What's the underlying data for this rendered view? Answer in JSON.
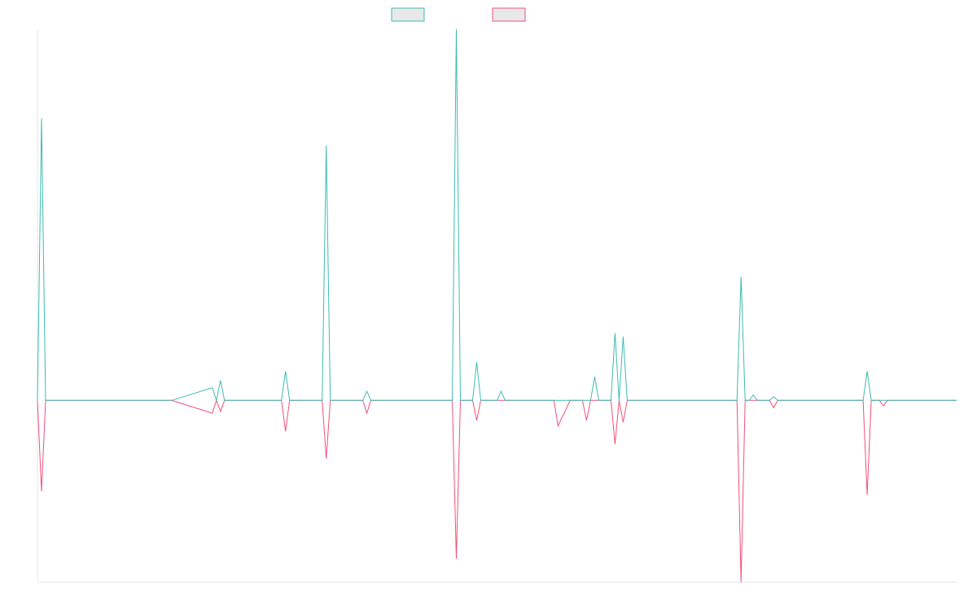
{
  "chart_data": {
    "type": "line",
    "title": "",
    "xlabel": "",
    "ylabel": "",
    "x": [
      0,
      1,
      2,
      3,
      4,
      5,
      6,
      7,
      8,
      9,
      10,
      11,
      12,
      13,
      14,
      15,
      16,
      17,
      18,
      19,
      20,
      21,
      22,
      23,
      24,
      25,
      26,
      27,
      28,
      29,
      30,
      31,
      32,
      33,
      34,
      35,
      36,
      37,
      38,
      39,
      40,
      41,
      42,
      43,
      44,
      45,
      46,
      47,
      48,
      49,
      50
    ],
    "xlim": [
      0,
      226
    ],
    "ylim": [
      -1.0,
      2.04
    ],
    "grid": false,
    "legend_position": "top-center",
    "series": [
      {
        "color": "#3dbcb0",
        "points": [
          [
            0,
            0
          ],
          [
            1,
            1.55
          ],
          [
            2,
            0
          ],
          [
            32,
            0
          ],
          [
            33,
            0
          ],
          [
            43,
            0.07
          ],
          [
            44,
            0
          ],
          [
            45,
            0.11
          ],
          [
            46,
            0
          ],
          [
            60,
            0
          ],
          [
            61,
            0.16
          ],
          [
            62,
            0
          ],
          [
            70,
            0
          ],
          [
            71,
            1.4
          ],
          [
            72,
            0
          ],
          [
            80,
            0
          ],
          [
            81,
            0.05
          ],
          [
            82,
            0
          ],
          [
            98,
            0
          ],
          [
            99,
            0
          ],
          [
            100,
            0
          ],
          [
            102,
            0
          ],
          [
            103,
            2.04
          ],
          [
            104,
            0
          ],
          [
            107,
            0
          ],
          [
            108,
            0.21
          ],
          [
            109,
            0
          ],
          [
            113,
            0
          ],
          [
            114,
            0.05
          ],
          [
            115,
            0
          ],
          [
            116,
            0
          ],
          [
            127,
            0
          ],
          [
            128,
            0
          ],
          [
            131,
            0
          ],
          [
            132,
            0
          ],
          [
            134,
            0
          ],
          [
            135,
            0
          ],
          [
            136,
            0
          ],
          [
            137,
            0.13
          ],
          [
            138,
            0
          ],
          [
            141,
            0
          ],
          [
            142,
            0.37
          ],
          [
            143,
            0
          ],
          [
            144,
            0.35
          ],
          [
            145,
            0
          ],
          [
            163,
            0
          ],
          [
            164,
            0
          ],
          [
            172,
            0
          ],
          [
            173,
            0.68
          ],
          [
            174,
            0
          ],
          [
            175,
            0
          ],
          [
            176,
            0.03
          ],
          [
            177,
            0
          ],
          [
            180,
            0
          ],
          [
            181,
            0.02
          ],
          [
            182,
            0
          ],
          [
            203,
            0
          ],
          [
            204,
            0.16
          ],
          [
            205,
            0
          ],
          [
            207,
            0
          ],
          [
            208,
            0
          ],
          [
            209,
            0
          ],
          [
            226,
            0
          ]
        ]
      },
      {
        "color": "#f0507a",
        "points": [
          [
            0,
            0
          ],
          [
            1,
            -0.5
          ],
          [
            2,
            0
          ],
          [
            32,
            0
          ],
          [
            33,
            0
          ],
          [
            43,
            -0.07
          ],
          [
            44,
            0
          ],
          [
            45,
            -0.06
          ],
          [
            46,
            0
          ],
          [
            60,
            0
          ],
          [
            61,
            -0.17
          ],
          [
            62,
            0
          ],
          [
            70,
            0
          ],
          [
            71,
            -0.32
          ],
          [
            72,
            0
          ],
          [
            80,
            0
          ],
          [
            81,
            -0.07
          ],
          [
            82,
            0
          ],
          [
            98,
            0
          ],
          [
            99,
            0
          ],
          [
            100,
            0
          ],
          [
            102,
            0
          ],
          [
            103,
            -0.87
          ],
          [
            104,
            0
          ],
          [
            107,
            0
          ],
          [
            108,
            -0.11
          ],
          [
            109,
            0
          ],
          [
            113,
            0
          ],
          [
            114,
            0
          ],
          [
            115,
            0
          ],
          [
            116,
            0
          ],
          [
            127,
            0
          ],
          [
            128,
            -0.14
          ],
          [
            131,
            0
          ],
          [
            132,
            0
          ],
          [
            134,
            0
          ],
          [
            135,
            -0.11
          ],
          [
            136,
            0
          ],
          [
            137,
            0
          ],
          [
            138,
            0
          ],
          [
            141,
            0
          ],
          [
            142,
            -0.24
          ],
          [
            143,
            0
          ],
          [
            144,
            -0.12
          ],
          [
            145,
            0
          ],
          [
            163,
            0
          ],
          [
            164,
            0
          ],
          [
            172,
            0
          ],
          [
            173,
            -1.0
          ],
          [
            174,
            0
          ],
          [
            175,
            0
          ],
          [
            176,
            0
          ],
          [
            177,
            0
          ],
          [
            180,
            0
          ],
          [
            181,
            -0.04
          ],
          [
            182,
            0
          ],
          [
            203,
            0
          ],
          [
            204,
            -0.52
          ],
          [
            205,
            0
          ],
          [
            207,
            0
          ],
          [
            208,
            -0.03
          ],
          [
            209,
            0
          ],
          [
            226,
            0
          ]
        ]
      }
    ]
  }
}
